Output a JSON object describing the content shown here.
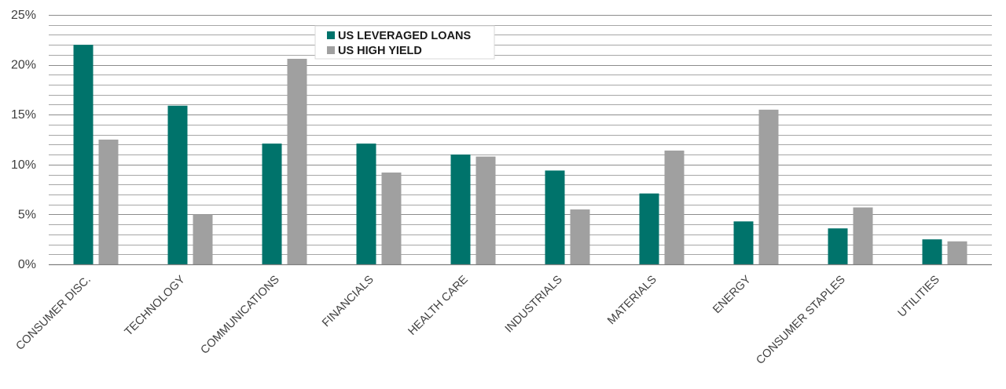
{
  "chart_data": {
    "type": "bar",
    "title": "",
    "xlabel": "",
    "ylabel": "",
    "ylim": [
      0,
      25
    ],
    "y_ticks": [
      "0%",
      "5%",
      "10%",
      "15%",
      "20%",
      "25%"
    ],
    "y_tick_values": [
      0,
      5,
      10,
      15,
      20,
      25
    ],
    "minor_gridlines_every": 1,
    "grid": true,
    "legend_position": "top-center",
    "categories": [
      "CONSUMER DISC.",
      "TECHNOLOGY",
      "COMMUNICATIONS",
      "FINANCIALS",
      "HEALTH CARE",
      "INDUSTRIALS",
      "MATERIALS",
      "ENERGY",
      "CONSUMER STAPLES",
      "UTILITIES"
    ],
    "series": [
      {
        "name": "US LEVERAGED LOANS",
        "color": "#00736b",
        "values": [
          22.0,
          15.9,
          12.1,
          12.1,
          11.0,
          9.4,
          7.1,
          4.3,
          3.6,
          2.5
        ]
      },
      {
        "name": "US HIGH YIELD",
        "color": "#a0a0a0",
        "values": [
          12.5,
          5.0,
          20.6,
          9.2,
          10.8,
          5.5,
          11.4,
          15.5,
          5.7,
          2.3
        ]
      }
    ]
  }
}
